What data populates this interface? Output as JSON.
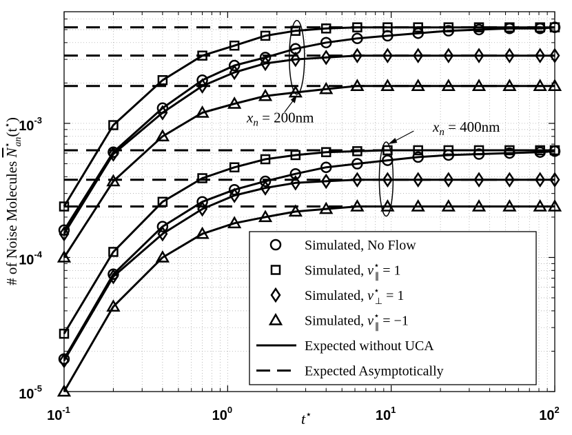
{
  "chart_data": {
    "type": "line",
    "title": "",
    "xlabel": "t",
    "xlabel_sup": "⋆",
    "ylabel": "# of Noise Molecules",
    "ylabel_math": "N",
    "ylabel_math_sup": "⋆",
    "ylabel_math_sub": "an",
    "ylabel_arg": "(t",
    "ylabel_arg_sup": "⋆",
    "ylabel_arg_close": ")",
    "x_scale": "log",
    "y_scale": "log",
    "xlim": [
      0.1,
      100
    ],
    "ylim": [
      1e-05,
      0.0068
    ],
    "grid": true,
    "x_ticks": [
      {
        "base": "10",
        "exp": "-1"
      },
      {
        "base": "10",
        "exp": "0"
      },
      {
        "base": "10",
        "exp": "1"
      },
      {
        "base": "10",
        "exp": "2"
      }
    ],
    "y_ticks": [
      {
        "base": "10",
        "exp": "-5",
        "value": 1e-05
      },
      {
        "base": "10",
        "exp": "-4",
        "value": 0.0001
      },
      {
        "base": "10",
        "exp": "-3",
        "value": 0.001
      }
    ],
    "x_points": [
      0.1,
      0.2,
      0.4,
      0.7,
      1.1,
      1.7,
      2.6,
      4,
      6.2,
      9.5,
      14.6,
      22.4,
      34.4,
      52.9,
      81.3,
      100
    ],
    "groups": [
      {
        "label": "x_n = 200nm",
        "asymptotes": [
          0.0052,
          0.0032,
          0.0019
        ],
        "series": [
          {
            "name": "No Flow",
            "marker": "circle",
            "values": [
              0.00016,
              0.00061,
              0.0013,
              0.0021,
              0.0027,
              0.0031,
              0.0036,
              0.004,
              0.0043,
              0.0045,
              0.0047,
              0.0049,
              0.005,
              0.0051,
              0.0051,
              0.0052
            ]
          },
          {
            "name": "v_par = 1",
            "marker": "square",
            "values": [
              0.00024,
              0.00097,
              0.0021,
              0.0032,
              0.0038,
              0.0045,
              0.0049,
              0.0051,
              0.0052,
              0.0052,
              0.0052,
              0.0052,
              0.0052,
              0.0052,
              0.0052,
              0.0052
            ]
          },
          {
            "name": "v_perp = 1",
            "marker": "diamond",
            "values": [
              0.00015,
              0.00059,
              0.0012,
              0.0019,
              0.0024,
              0.0028,
              0.003,
              0.0031,
              0.0032,
              0.0032,
              0.0032,
              0.0032,
              0.0032,
              0.0032,
              0.0032,
              0.0032
            ]
          },
          {
            "name": "v_par = -1",
            "marker": "triangle",
            "values": [
              0.0001,
              0.00037,
              0.0008,
              0.0012,
              0.0014,
              0.0016,
              0.0017,
              0.0018,
              0.0019,
              0.0019,
              0.0019,
              0.0019,
              0.0019,
              0.0019,
              0.0019,
              0.0019
            ]
          }
        ]
      },
      {
        "label": "x_n = 400nm",
        "asymptotes": [
          0.00063,
          0.00038,
          0.00024
        ],
        "series": [
          {
            "name": "No Flow",
            "marker": "circle",
            "values": [
              1.75e-05,
              7.5e-05,
              0.00017,
              0.00026,
              0.00032,
              0.00037,
              0.00042,
              0.00047,
              0.0005,
              0.00053,
              0.00056,
              0.00058,
              0.00059,
              0.0006,
              0.00061,
              0.00062
            ]
          },
          {
            "name": "v_par = 1",
            "marker": "square",
            "values": [
              2.7e-05,
              0.00011,
              0.00026,
              0.00039,
              0.00047,
              0.00054,
              0.00058,
              0.00061,
              0.00062,
              0.00063,
              0.00063,
              0.00063,
              0.00063,
              0.00063,
              0.00063,
              0.00063
            ]
          },
          {
            "name": "v_perp = 1",
            "marker": "diamond",
            "values": [
              1.7e-05,
              7.2e-05,
              0.00015,
              0.00023,
              0.00029,
              0.00033,
              0.00036,
              0.00037,
              0.00038,
              0.00038,
              0.00038,
              0.00038,
              0.00038,
              0.00038,
              0.00038,
              0.00038
            ]
          },
          {
            "name": "v_par = -1",
            "marker": "triangle",
            "values": [
              1e-05,
              4.3e-05,
              0.0001,
              0.00015,
              0.00018,
              0.0002,
              0.00022,
              0.00023,
              0.00024,
              0.00024,
              0.00024,
              0.00024,
              0.00024,
              0.00024,
              0.00024,
              0.00024
            ]
          }
        ]
      }
    ],
    "annotations": [
      {
        "text_var": "x",
        "text_sub": "n",
        "text_rest": " = 200nm",
        "ellipse_x": 2.6,
        "ellipse_y": [
          0.0019,
          0.0052
        ]
      },
      {
        "text_var": "x",
        "text_sub": "n",
        "text_rest": " = 400nm",
        "ellipse_x": 9.5,
        "ellipse_y": [
          0.00024,
          0.00063
        ]
      }
    ],
    "legend": {
      "position": "bottom-right",
      "entries": [
        {
          "marker": "circle",
          "text": "Simulated, No Flow",
          "math": ""
        },
        {
          "marker": "square",
          "text": "Simulated, ",
          "math": "v",
          "math_sup": "⋆",
          "math_sub": "∥",
          "rest": " = 1"
        },
        {
          "marker": "diamond",
          "text": "Simulated, ",
          "math": "v",
          "math_sup": "⋆",
          "math_sub": "⊥",
          "rest": " = 1"
        },
        {
          "marker": "triangle",
          "text": "Simulated, ",
          "math": "v",
          "math_sup": "⋆",
          "math_sub": "∥",
          "rest": " = −1"
        },
        {
          "marker": "solid-line",
          "text": "Expected without UCA",
          "math": ""
        },
        {
          "marker": "dashed-line",
          "text": "Expected Asymptotically",
          "math": ""
        }
      ]
    }
  }
}
